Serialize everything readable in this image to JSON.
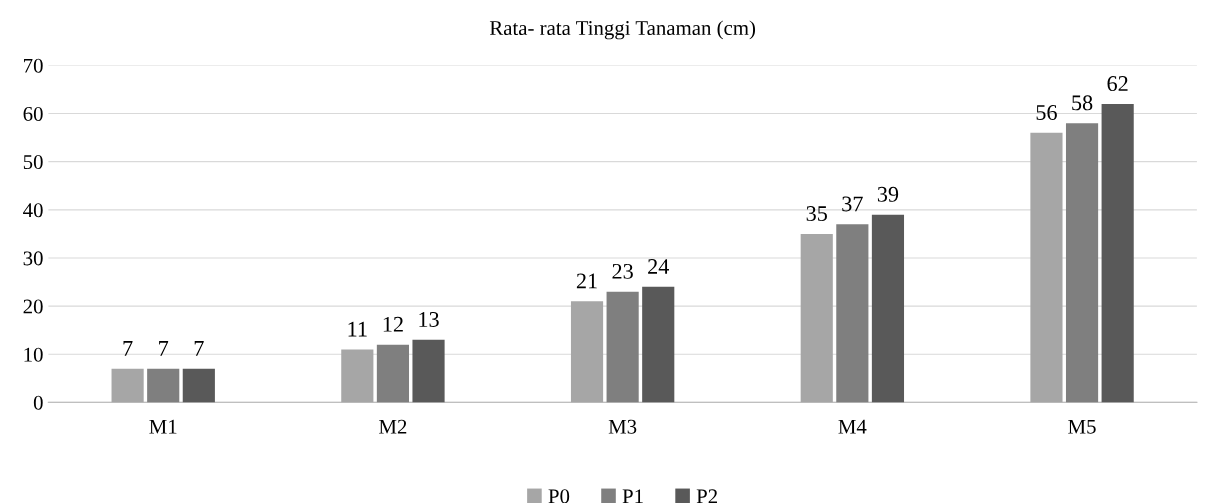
{
  "chart_data": {
    "type": "bar",
    "title": "Rata- rata Tinggi Tanaman (cm)",
    "categories": [
      "M1",
      "M2",
      "M3",
      "M4",
      "M5"
    ],
    "series": [
      {
        "name": "P0",
        "color": "#a6a6a6",
        "values": [
          7,
          11,
          21,
          35,
          56
        ]
      },
      {
        "name": "P1",
        "color": "#7f7f7f",
        "values": [
          7,
          12,
          23,
          37,
          58
        ]
      },
      {
        "name": "P2",
        "color": "#595959",
        "values": [
          7,
          13,
          24,
          39,
          62
        ]
      }
    ],
    "ylim": [
      0,
      70
    ],
    "yticks": [
      0,
      10,
      20,
      30,
      40,
      50,
      60,
      70
    ],
    "grid": "y",
    "legend": "bottom",
    "data_labels": true
  }
}
